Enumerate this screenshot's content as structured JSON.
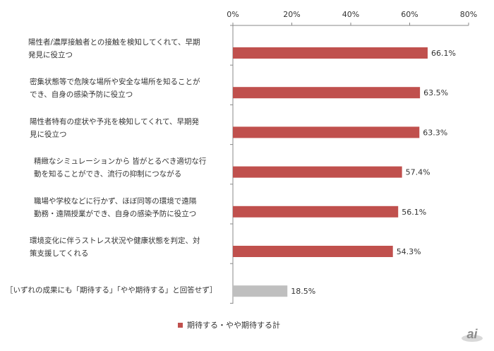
{
  "chart_data": {
    "type": "bar",
    "orientation": "horizontal",
    "categories": [
      [
        "陽性者/濃厚接触者との接触を検知してくれて、早期",
        "発見に役立つ"
      ],
      [
        "密集状態等で危険な場所や安全な場所を知ることが",
        "でき、自身の感染予防に役立つ"
      ],
      [
        "陽性者特有の症状や予兆を検知してくれて、早期発",
        "見に役立つ"
      ],
      [
        "精緻なシミュレーションから 皆がとるべき適切な行",
        "動を知ることができ、流行の抑制につながる"
      ],
      [
        "職場や学校などに行かず、ほぼ同等の環境で遠隔",
        "勤務・遠隔授業ができ、自身の感染予防に役立つ"
      ],
      [
        "環境変化に伴うストレス状況や健康状態を判定、対",
        "策支援してくれる"
      ],
      [
        "［いずれの成果にも「期待する」「やや期待する」と回答せず］"
      ]
    ],
    "series": [
      {
        "name": "期待する・やや期待する計",
        "values": [
          66.1,
          63.5,
          63.3,
          57.4,
          56.1,
          54.3,
          18.5
        ],
        "value_labels": [
          "66.1%",
          "63.5%",
          "63.3%",
          "57.4%",
          "56.1%",
          "54.3%",
          "18.5%"
        ],
        "colors": [
          "#c0504d",
          "#c0504d",
          "#c0504d",
          "#c0504d",
          "#c0504d",
          "#c0504d",
          "#bfbfbf"
        ]
      }
    ],
    "xlim": [
      0,
      80
    ],
    "xticks": [
      "0%",
      "20%",
      "40%",
      "60%",
      "80%"
    ],
    "xtick_values": [
      0,
      20,
      40,
      60,
      80
    ],
    "axis_position": "top",
    "grid": false,
    "legend_position": "bottom-center"
  },
  "legend": {
    "label": "期待する・やや期待する計",
    "color": "#c0504d"
  },
  "logo": {
    "icon": "zdnet-ai-logo"
  }
}
